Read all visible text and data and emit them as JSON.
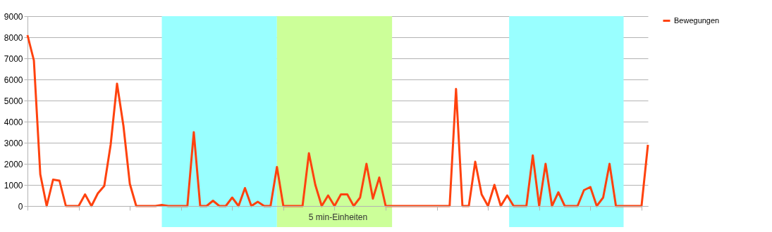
{
  "chart_data": {
    "type": "line",
    "xlabel": "5 min-Einheiten",
    "categories": [
      null,
      null,
      null,
      null,
      null,
      null,
      null,
      null,
      null,
      null,
      null,
      null,
      null,
      null,
      null,
      null,
      null,
      null,
      null,
      null,
      null,
      null,
      null,
      null,
      null,
      null,
      null,
      null,
      null,
      null,
      null,
      null,
      null,
      null,
      null,
      null,
      null,
      null,
      null,
      null,
      null,
      null,
      null,
      null,
      null,
      null,
      null,
      null,
      null,
      null,
      null,
      null,
      null,
      null,
      null,
      null,
      null,
      null,
      null,
      null,
      null,
      null,
      null,
      null,
      null,
      null,
      null,
      null,
      null,
      null,
      null,
      null,
      null,
      null,
      null,
      null,
      null,
      null,
      null,
      null,
      null,
      null,
      null,
      null,
      null,
      null,
      null,
      null,
      null,
      null,
      null,
      null,
      null,
      null,
      null,
      null,
      null,
      null
    ],
    "series": [
      {
        "name": "Bewegungen",
        "color": "#ff420e",
        "values": [
          8100,
          6900,
          1500,
          0,
          1250,
          1200,
          0,
          0,
          0,
          550,
          0,
          600,
          950,
          2900,
          5800,
          3800,
          1050,
          0,
          0,
          0,
          0,
          50,
          0,
          0,
          0,
          0,
          3500,
          0,
          0,
          250,
          0,
          0,
          400,
          0,
          850,
          0,
          200,
          0,
          0,
          1850,
          0,
          0,
          0,
          0,
          2500,
          1000,
          0,
          500,
          0,
          550,
          550,
          0,
          400,
          2000,
          350,
          1350,
          0,
          0,
          0,
          0,
          0,
          0,
          0,
          0,
          0,
          0,
          0,
          5550,
          0,
          0,
          2100,
          550,
          0,
          1000,
          0,
          500,
          0,
          0,
          0,
          2400,
          0,
          2000,
          0,
          650,
          0,
          0,
          0,
          750,
          900,
          0,
          400,
          2000,
          0,
          0,
          0,
          0,
          0,
          2900
        ]
      }
    ],
    "ylim": [
      0,
      9000
    ],
    "yticks": [
      0,
      1000,
      2000,
      3000,
      4000,
      5000,
      6000,
      7000,
      8000,
      9000
    ],
    "grid": "y",
    "legend": "right",
    "marker": "none",
    "line_style": "solid"
  }
}
